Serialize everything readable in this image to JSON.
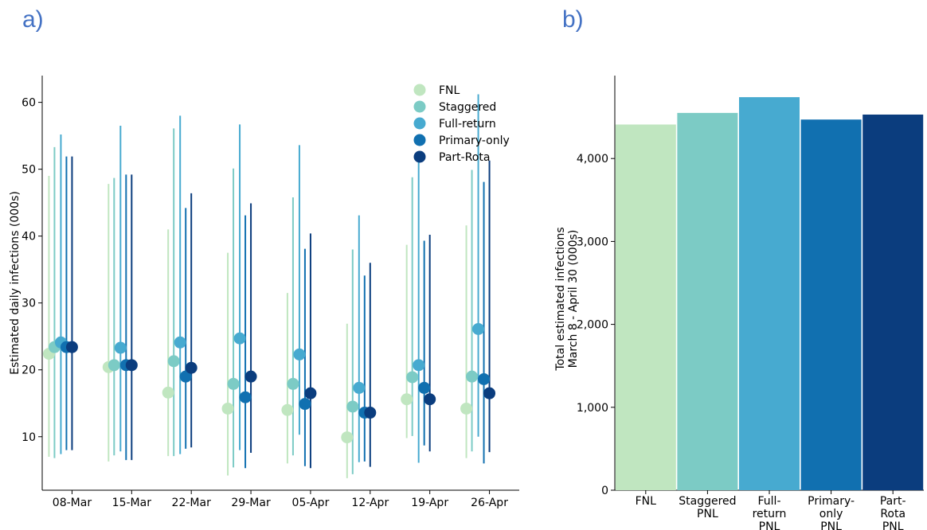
{
  "panels": {
    "a": "a)",
    "b": "b)"
  },
  "chart_data": [
    {
      "type": "scatter",
      "subtype": "point-range",
      "ylabel": "Estimated daily infections (000s)",
      "xlabel": "",
      "ylim": [
        2,
        64
      ],
      "yticks": [
        "10",
        "20",
        "30",
        "40",
        "50",
        "60"
      ],
      "categories": [
        "08-Mar",
        "15-Mar",
        "22-Mar",
        "29-Mar",
        "05-Apr",
        "12-Apr",
        "19-Apr",
        "26-Apr"
      ],
      "legend_position": "top-right",
      "series": [
        {
          "name": "FNL",
          "color": "#c0e6c0",
          "values": [
            22.4,
            20.4,
            16.6,
            14.2,
            14.0,
            9.9,
            15.6,
            14.2
          ],
          "low": [
            7.0,
            6.3,
            7.1,
            4.2,
            6.0,
            3.8,
            9.8,
            6.8
          ],
          "high": [
            49.0,
            47.8,
            41.0,
            37.5,
            31.5,
            26.9,
            38.7,
            41.6
          ]
        },
        {
          "name": "Staggered",
          "color": "#7ccbc5",
          "values": [
            23.4,
            20.7,
            21.3,
            17.9,
            17.9,
            14.5,
            18.9,
            19.0
          ],
          "low": [
            6.8,
            7.2,
            7.1,
            5.4,
            7.2,
            4.4,
            10.1,
            7.8
          ],
          "high": [
            53.3,
            48.7,
            56.1,
            50.1,
            45.8,
            38.0,
            48.8,
            49.9
          ]
        },
        {
          "name": "Full-return",
          "color": "#47aad0",
          "values": [
            24.1,
            23.3,
            24.1,
            24.7,
            22.3,
            17.3,
            20.7,
            26.1
          ],
          "low": [
            7.4,
            7.8,
            7.4,
            8.0,
            10.3,
            6.2,
            6.1,
            10.0
          ],
          "high": [
            55.2,
            56.5,
            58.0,
            56.7,
            53.6,
            43.1,
            51.3,
            61.2
          ]
        },
        {
          "name": "Primary-only",
          "color": "#1170b0",
          "values": [
            23.4,
            20.7,
            19.0,
            15.9,
            14.9,
            13.6,
            17.3,
            18.6
          ],
          "low": [
            8.0,
            6.5,
            8.2,
            5.3,
            5.6,
            6.3,
            8.7,
            6.0
          ],
          "high": [
            51.9,
            49.2,
            44.2,
            43.1,
            38.1,
            34.1,
            39.3,
            48.1
          ]
        },
        {
          "name": "Part-Rota",
          "color": "#0b3d7e",
          "values": [
            23.4,
            20.7,
            20.3,
            19.0,
            16.5,
            13.6,
            15.6,
            16.5
          ],
          "low": [
            8.0,
            6.5,
            8.4,
            7.6,
            5.3,
            5.5,
            7.8,
            7.7
          ],
          "high": [
            51.9,
            49.2,
            46.4,
            44.9,
            40.4,
            36.0,
            40.2,
            51.3
          ]
        }
      ]
    },
    {
      "type": "bar",
      "ylabel": [
        "Total estimated infections",
        "March 8 - April 30 (000s)"
      ],
      "xlabel": "",
      "ylim": [
        0,
        5000
      ],
      "yticks": [
        "0",
        "1,000",
        "2,000",
        "3,000",
        "4,000"
      ],
      "categories": [
        [
          "FNL"
        ],
        [
          "Staggered",
          "PNL"
        ],
        [
          "Full-",
          "return",
          "PNL"
        ],
        [
          "Primary-",
          "only",
          "PNL"
        ],
        [
          "Part-",
          "Rota",
          "PNL"
        ]
      ],
      "values": [
        4410,
        4550,
        4740,
        4470,
        4530
      ],
      "colors": [
        "#c0e6c0",
        "#7ccbc5",
        "#47aad0",
        "#1170b0",
        "#0b3d7e"
      ]
    }
  ]
}
